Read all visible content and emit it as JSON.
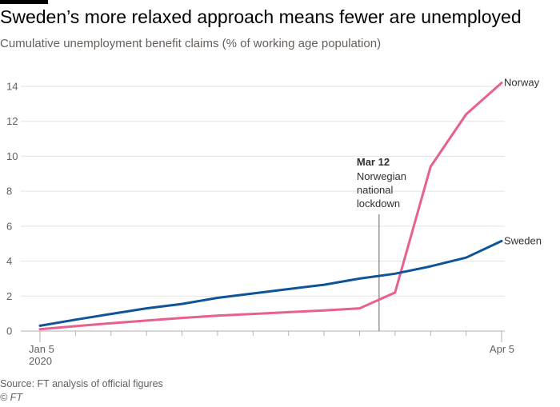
{
  "header": {
    "title": "Sweden’s more relaxed approach means fewer are unemployed",
    "subtitle": "Cumulative unemployment benefit claims (% of working age population)"
  },
  "footer": {
    "source": "Source: FT analysis of official figures",
    "copyright": "© FT"
  },
  "colors": {
    "norway": "#e8608f",
    "sweden": "#0f5499",
    "grid": "#e6e2dd",
    "axis_text": "#66605c",
    "annotation_line": "#66605c"
  },
  "chart_data": {
    "type": "line",
    "title": "Sweden’s more relaxed approach means fewer are unemployed",
    "subtitle": "Cumulative unemployment benefit claims (% of working age population)",
    "xlabel": "",
    "ylabel": "",
    "ylim": [
      0,
      14
    ],
    "yticks": [
      "0",
      "2",
      "4",
      "6",
      "8",
      "10",
      "12",
      "14"
    ],
    "x_tick_labels": [
      {
        "label": "Jan 5",
        "sublabel": "2020",
        "index": 0
      },
      {
        "label": "Apr 5",
        "sublabel": "",
        "index": 13
      }
    ],
    "x_count": 14,
    "grid": true,
    "series": [
      {
        "name": "Norway",
        "color": "#e8608f",
        "values": [
          0.1,
          0.28,
          0.45,
          0.6,
          0.75,
          0.88,
          0.98,
          1.08,
          1.18,
          1.3,
          2.2,
          9.4,
          12.4,
          14.2
        ]
      },
      {
        "name": "Sweden",
        "color": "#0f5499",
        "values": [
          0.3,
          0.65,
          0.98,
          1.3,
          1.55,
          1.9,
          2.15,
          2.4,
          2.65,
          3.0,
          3.28,
          3.7,
          4.2,
          5.15
        ]
      }
    ],
    "annotation": {
      "index": 9.55,
      "date": "Mar 12",
      "lines": [
        "Norwegian",
        "national",
        "lockdown"
      ]
    }
  }
}
